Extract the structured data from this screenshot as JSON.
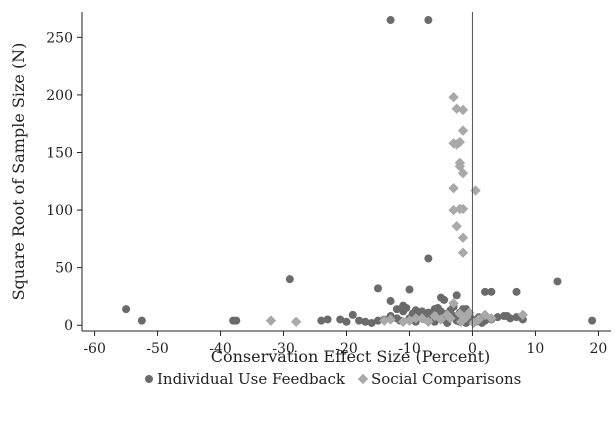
{
  "chart_data": {
    "type": "scatter",
    "xlabel": "Conservation Effect Size (Percent)",
    "ylabel": "Square Root of Sample Size (N)",
    "xlim": [
      -62,
      22
    ],
    "ylim": [
      -5,
      272
    ],
    "x_ticks": [
      -60,
      -50,
      -40,
      -30,
      -20,
      -10,
      0,
      10,
      20
    ],
    "y_ticks": [
      0,
      50,
      100,
      150,
      200,
      250
    ],
    "reference_line_x": 0,
    "grid": false,
    "legend_position": "bottom",
    "series": [
      {
        "name": "Individual Use Feedback",
        "marker": "circle",
        "color": "#6b6b6b",
        "points": [
          [
            -13,
            265
          ],
          [
            -7,
            265
          ],
          [
            -7,
            58
          ],
          [
            -29,
            40
          ],
          [
            -15,
            32
          ],
          [
            -10,
            31
          ],
          [
            2,
            29
          ],
          [
            3,
            29
          ],
          [
            7,
            29
          ],
          [
            13.5,
            38
          ],
          [
            -55,
            14
          ],
          [
            -52.5,
            4
          ],
          [
            -38,
            4
          ],
          [
            -37.5,
            4
          ],
          [
            19,
            4
          ],
          [
            -5,
            24
          ],
          [
            -2.5,
            26
          ],
          [
            -4.5,
            22
          ],
          [
            -13,
            21
          ],
          [
            -11,
            17
          ],
          [
            -24,
            4
          ],
          [
            -23,
            5
          ],
          [
            -21,
            5
          ],
          [
            -20,
            3
          ],
          [
            -19,
            9
          ],
          [
            -18,
            4
          ],
          [
            -17,
            3
          ],
          [
            -16,
            2
          ],
          [
            -15,
            4
          ],
          [
            -14,
            5
          ],
          [
            -13,
            8
          ],
          [
            -12,
            14
          ],
          [
            -11,
            12
          ],
          [
            -10.5,
            15
          ],
          [
            -10,
            6
          ],
          [
            -9.5,
            10
          ],
          [
            -9,
            13
          ],
          [
            -8.5,
            8
          ],
          [
            -8,
            12
          ],
          [
            -7.5,
            5
          ],
          [
            -7,
            11
          ],
          [
            -6.5,
            9
          ],
          [
            -6,
            14
          ],
          [
            -5.5,
            7
          ],
          [
            -5,
            12
          ],
          [
            -4.5,
            5
          ],
          [
            -4,
            10
          ],
          [
            -3.5,
            13
          ],
          [
            -3,
            8
          ],
          [
            -2.5,
            4
          ],
          [
            -2,
            11
          ],
          [
            -1.5,
            6
          ],
          [
            -1,
            14
          ],
          [
            -0.5,
            9
          ],
          [
            0,
            5
          ],
          [
            0.5,
            3
          ],
          [
            1,
            7
          ],
          [
            2,
            4
          ],
          [
            3,
            5
          ],
          [
            4,
            7
          ],
          [
            5,
            8
          ],
          [
            5.5,
            8
          ],
          [
            6,
            6
          ],
          [
            7,
            7
          ],
          [
            8,
            5
          ],
          [
            -11.5,
            4
          ],
          [
            -9,
            3
          ],
          [
            -6,
            3
          ],
          [
            -4,
            2
          ],
          [
            -2,
            3
          ],
          [
            -1,
            2
          ],
          [
            1.5,
            2
          ],
          [
            -12,
            6
          ],
          [
            -8,
            7
          ],
          [
            -5.5,
            15
          ],
          [
            -3,
            16
          ],
          [
            -1.5,
            14
          ],
          [
            -0.8,
            4
          ]
        ]
      },
      {
        "name": "Social Comparisons",
        "marker": "diamond",
        "color": "#a9a9a9",
        "points": [
          [
            -3,
            198
          ],
          [
            -2.5,
            188
          ],
          [
            -1.5,
            187
          ],
          [
            -1.5,
            169
          ],
          [
            -3,
            158
          ],
          [
            -2.5,
            157
          ],
          [
            -2,
            159
          ],
          [
            -2,
            141
          ],
          [
            -2,
            138
          ],
          [
            -1.5,
            132
          ],
          [
            -3,
            119
          ],
          [
            0.5,
            117
          ],
          [
            -3,
            100
          ],
          [
            -2,
            101
          ],
          [
            -1.5,
            101
          ],
          [
            -2.5,
            86
          ],
          [
            -1.5,
            76
          ],
          [
            -1.5,
            63
          ],
          [
            -32,
            4
          ],
          [
            -28,
            3
          ],
          [
            -13,
            5
          ],
          [
            -10,
            4
          ],
          [
            -8,
            6
          ],
          [
            -6,
            8
          ],
          [
            -4,
            9
          ],
          [
            -3,
            19
          ],
          [
            -2,
            10
          ],
          [
            -1,
            7
          ],
          [
            1,
            5
          ],
          [
            2,
            9
          ],
          [
            3,
            6
          ],
          [
            8,
            9
          ],
          [
            -5,
            5
          ],
          [
            -7,
            3
          ],
          [
            -9,
            6
          ],
          [
            -1.8,
            3
          ],
          [
            0.2,
            2
          ],
          [
            -11,
            3
          ],
          [
            -14,
            4
          ],
          [
            -3.5,
            6
          ],
          [
            -0.5,
            11
          ]
        ]
      }
    ]
  }
}
